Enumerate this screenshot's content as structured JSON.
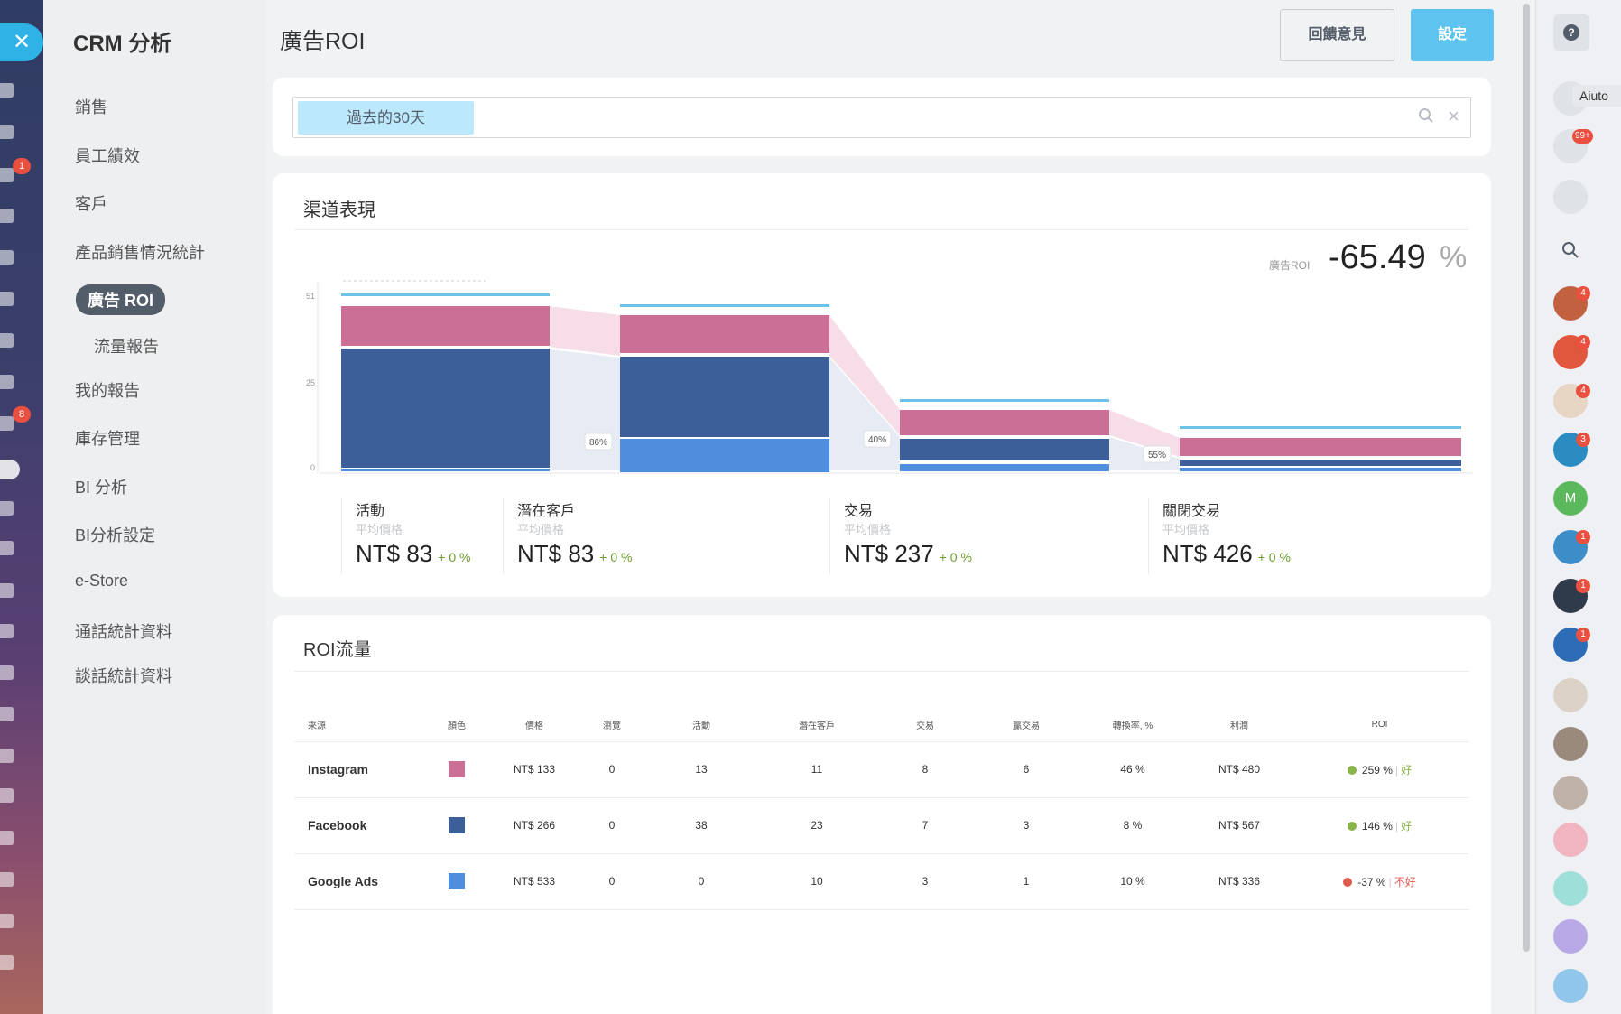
{
  "colors": {
    "instagram": "#cc6f96",
    "facebook": "#3c5f99",
    "google_ads": "#4e8edc",
    "accent": "#5ec4ef"
  },
  "sidebar": {
    "title": "CRM 分析",
    "items": [
      {
        "label": "銷售"
      },
      {
        "label": "員工績效"
      },
      {
        "label": "客戶"
      },
      {
        "label": "產品銷售情況統計"
      },
      {
        "label": "廣告 ROI"
      },
      {
        "label": "流量報告"
      },
      {
        "label": "我的報告"
      },
      {
        "label": "庫存管理"
      },
      {
        "label": "BI 分析"
      },
      {
        "label": "BI分析設定"
      },
      {
        "label": "e-Store"
      },
      {
        "label": "通話統計資料"
      },
      {
        "label": "談話統計資料"
      }
    ],
    "rail_badges": [
      "1",
      "8"
    ]
  },
  "header": {
    "title": "廣告ROI",
    "feedback_label": "回饋意見",
    "settings_label": "設定"
  },
  "filter": {
    "chip_label": "過去的30天"
  },
  "channel": {
    "title": "渠道表現",
    "roi_label": "廣告ROI",
    "roi_value": "-65.49",
    "roi_unit": "%",
    "y_ticks": [
      "51",
      "25",
      "0"
    ],
    "conversion_badges": [
      "86%",
      "40%",
      "55%"
    ],
    "stages": [
      {
        "name": "活動",
        "sub": "平均價格",
        "price": "NT$ 83",
        "change": "+ 0 %"
      },
      {
        "name": "潛在客戶",
        "sub": "平均價格",
        "price": "NT$ 83",
        "change": "+ 0 %"
      },
      {
        "name": "交易",
        "sub": "平均價格",
        "price": "NT$ 237",
        "change": "+ 0 %"
      },
      {
        "name": "關閉交易",
        "sub": "平均價格",
        "price": "NT$ 426",
        "change": "+ 0 %"
      }
    ]
  },
  "roi_table": {
    "title": "ROI流量",
    "headers": [
      "來源",
      "顏色",
      "價格",
      "瀏覽",
      "活動",
      "潛在客戶",
      "交易",
      "贏交易",
      "轉換率, %",
      "利潤",
      "ROI"
    ],
    "rows": [
      {
        "source": "Instagram",
        "price": "NT$ 133",
        "views": "0",
        "activities": "13",
        "leads": "11",
        "deals": "8",
        "won": "6",
        "conversion": "46 %",
        "profit": "NT$ 480",
        "roi": "259 %",
        "rating": "好"
      },
      {
        "source": "Facebook",
        "price": "NT$ 266",
        "views": "0",
        "activities": "38",
        "leads": "23",
        "deals": "7",
        "won": "3",
        "conversion": "8 %",
        "profit": "NT$ 567",
        "roi": "146 %",
        "rating": "好"
      },
      {
        "source": "Google Ads",
        "price": "NT$ 533",
        "views": "0",
        "activities": "0",
        "leads": "10",
        "deals": "3",
        "won": "1",
        "conversion": "10 %",
        "profit": "NT$ 336",
        "roi": "-37 %",
        "rating": "不好"
      }
    ]
  },
  "right_panel": {
    "help_icon": "?",
    "aiuto_label": "Aiuto",
    "notification_count": "99+",
    "badges": [
      "4",
      "4",
      "4",
      "3",
      "1",
      "1",
      "1"
    ],
    "avatar_letter": "M"
  }
}
